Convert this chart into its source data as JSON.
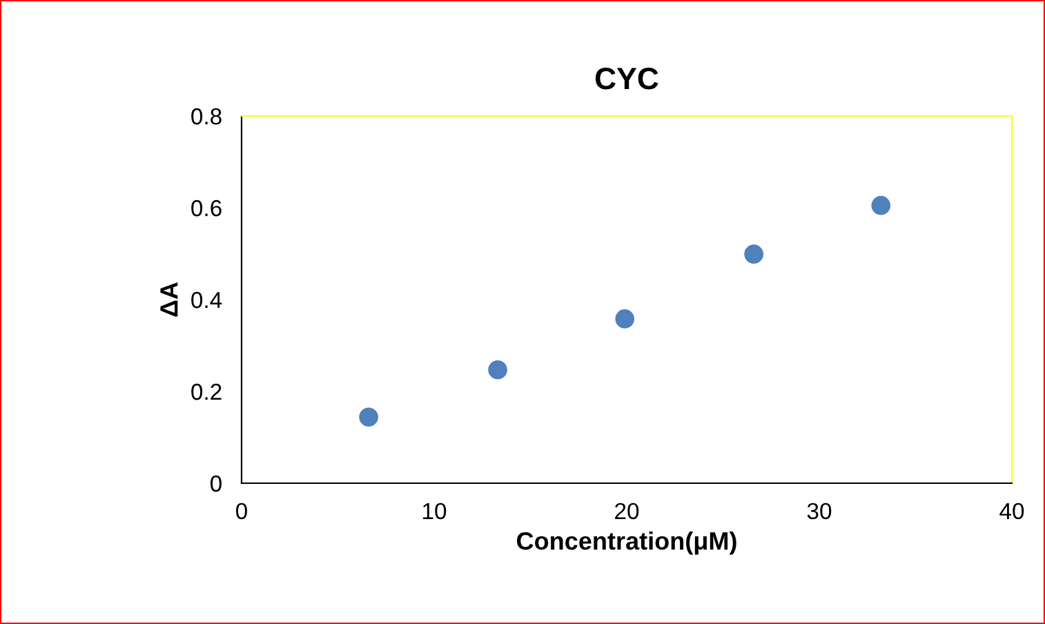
{
  "chart_data": {
    "type": "scatter",
    "title": "CYC",
    "xlabel": "Concentration(μM)",
    "ylabel": "ΔA",
    "x": [
      6.6,
      13.3,
      19.9,
      26.6,
      33.2
    ],
    "series": [
      {
        "color": "#4f81bd",
        "values": [
          0.144,
          0.247,
          0.358,
          0.499,
          0.605
        ]
      }
    ],
    "xlim": [
      0,
      40
    ],
    "xticks": [
      0,
      10,
      20,
      30,
      40
    ],
    "ylim": [
      0,
      0.8
    ],
    "yticks": [
      0,
      0.2,
      0.4,
      0.6,
      0.8
    ],
    "grid": false,
    "legend": false,
    "marker": "circle"
  }
}
